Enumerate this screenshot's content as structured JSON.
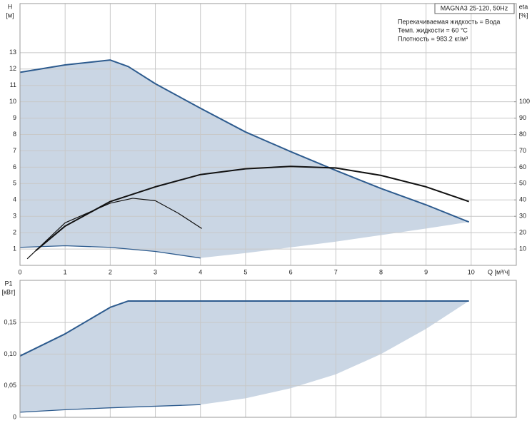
{
  "chart_data": [
    {
      "type": "line",
      "ylabel": "H",
      "yunit": "[м]",
      "y2label": "eta",
      "y2unit": "[%]",
      "xlabel": "Q [м³/ч]",
      "legend_title": "MAGNA3 25-120, 50Hz",
      "notes": [
        "Перекачиваемая жидкость = Вода",
        "Темп. жидкости = 60 °C",
        "Плотность = 983.2 кг/м³"
      ],
      "xlim": [
        0,
        11
      ],
      "xticks": [
        0,
        1,
        2,
        3,
        4,
        5,
        6,
        7,
        8,
        9,
        10
      ],
      "ylim": [
        0,
        16
      ],
      "yticks": [
        1,
        2,
        3,
        4,
        5,
        6,
        7,
        8,
        9,
        10,
        11,
        12,
        13
      ],
      "y2lim": [
        0,
        160
      ],
      "y2ticks": [
        10,
        20,
        30,
        40,
        50,
        60,
        70,
        80,
        90,
        100
      ],
      "grid": true,
      "region": {
        "color": "#cad6e4",
        "x": [
          0,
          1,
          2,
          2.4,
          3,
          4,
          5,
          6,
          7,
          8,
          9,
          9.95,
          9,
          8,
          7,
          6,
          5,
          4,
          3,
          2,
          1,
          0
        ],
        "values": [
          11.8,
          12.25,
          12.55,
          12.15,
          11.1,
          9.6,
          8.15,
          6.95,
          5.8,
          4.7,
          3.7,
          2.65,
          2.25,
          1.85,
          1.45,
          1.1,
          0.75,
          0.45,
          0.85,
          1.1,
          1.2,
          1.1
        ]
      },
      "series": [
        {
          "color": "#2d5b8e",
          "width": 2,
          "x": [
            0,
            1,
            2,
            2.4,
            3,
            4,
            5,
            6,
            7,
            8,
            9,
            9.95
          ],
          "values": [
            11.8,
            12.25,
            12.55,
            12.15,
            11.1,
            9.6,
            8.15,
            6.95,
            5.8,
            4.7,
            3.7,
            2.65
          ]
        },
        {
          "color": "#2d5b8e",
          "width": 1.3,
          "x": [
            0,
            1,
            2,
            3,
            4
          ],
          "values": [
            1.1,
            1.2,
            1.1,
            0.85,
            0.45
          ]
        },
        {
          "color": "#111111",
          "width": 2,
          "axis": "y2",
          "x": [
            0.35,
            1,
            2,
            3,
            4,
            5,
            6,
            7,
            8,
            9,
            9.95
          ],
          "values": [
            9,
            24,
            39,
            48,
            55.5,
            59,
            60.5,
            59.5,
            55,
            48,
            39
          ]
        },
        {
          "color": "#111111",
          "width": 1.2,
          "axis": "y2",
          "x": [
            0.16,
            1,
            2,
            2.5,
            3,
            3.5,
            4.03
          ],
          "values": [
            4,
            26,
            38,
            41,
            39.5,
            32,
            22.5
          ]
        }
      ]
    },
    {
      "type": "line",
      "ylabel": "P1",
      "yunit": "[кВт]",
      "xlim": [
        0,
        11
      ],
      "xticks": [
        0,
        1,
        2,
        3,
        4,
        5,
        6,
        7,
        8,
        9,
        10
      ],
      "ylim": [
        0,
        0.2167
      ],
      "yticks": [
        0,
        {
          "value": 0.05,
          "label": "0,05"
        },
        {
          "value": 0.1,
          "label": "0,10"
        },
        {
          "value": 0.15,
          "label": "0,15"
        }
      ],
      "grid": true,
      "region": {
        "color": "#cad6e4",
        "x": [
          0,
          1,
          2,
          2.4,
          9.95,
          9,
          8,
          7,
          6,
          5,
          4,
          2,
          1,
          0
        ],
        "values": [
          0.097,
          0.132,
          0.174,
          0.184,
          0.184,
          0.14,
          0.1,
          0.068,
          0.046,
          0.03,
          0.02,
          0.015,
          0.012,
          0.008
        ]
      },
      "series": [
        {
          "color": "#2d5b8e",
          "width": 2,
          "x": [
            0,
            1,
            2,
            2.4,
            9.95
          ],
          "values": [
            0.097,
            0.132,
            0.174,
            0.184,
            0.184
          ]
        },
        {
          "color": "#2d5b8e",
          "width": 1.3,
          "x": [
            0,
            1,
            2,
            4
          ],
          "values": [
            0.008,
            0.012,
            0.015,
            0.02
          ]
        }
      ]
    }
  ]
}
